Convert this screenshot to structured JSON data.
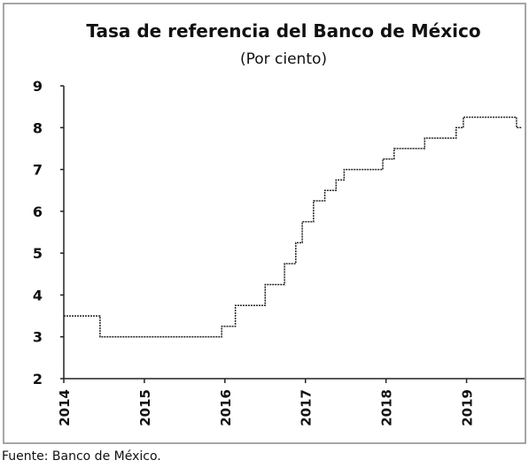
{
  "chart_data": {
    "type": "line",
    "title": "Tasa de referencia del Banco de México",
    "subtitle": "(Por ciento)",
    "source": "Fuente: Banco de México.",
    "series": [
      {
        "name": "Tasa de referencia",
        "color": "#222222",
        "x": [
          2014,
          2014.45,
          2014.45,
          2015.96,
          2015.96,
          2016.13,
          2016.13,
          2016.5,
          2016.5,
          2016.74,
          2016.74,
          2016.88,
          2016.88,
          2016.96,
          2016.96,
          2017.1,
          2017.1,
          2017.24,
          2017.24,
          2017.38,
          2017.38,
          2017.48,
          2017.48,
          2017.96,
          2017.96,
          2018.1,
          2018.1,
          2018.48,
          2018.48,
          2018.87,
          2018.87,
          2018.96,
          2018.96,
          2019.62,
          2019.62,
          2019.68
        ],
        "values": [
          3.5,
          3.5,
          3.0,
          3.0,
          3.25,
          3.25,
          3.75,
          3.75,
          4.25,
          4.25,
          4.75,
          4.75,
          5.25,
          5.25,
          5.75,
          5.75,
          6.25,
          6.25,
          6.5,
          6.5,
          6.75,
          6.75,
          7.0,
          7.0,
          7.25,
          7.25,
          7.5,
          7.5,
          7.75,
          7.75,
          8.0,
          8.0,
          8.25,
          8.25,
          8.0,
          8.0
        ]
      }
    ],
    "xlim": [
      2014,
      2019.72
    ],
    "xticks": [
      2014,
      2015,
      2016,
      2017,
      2018,
      2019
    ],
    "ylim": [
      2,
      9
    ],
    "yticks": [
      2,
      3,
      4,
      5,
      6,
      7,
      8,
      9
    ],
    "grid": false
  }
}
